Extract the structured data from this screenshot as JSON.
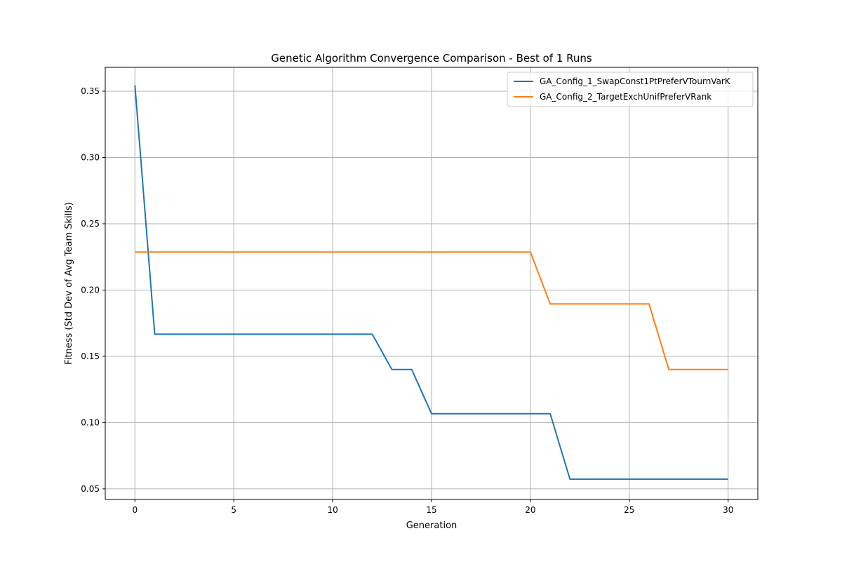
{
  "chart_data": {
    "type": "line",
    "title": "Genetic Algorithm Convergence Comparison - Best of 1 Runs",
    "xlabel": "Generation",
    "ylabel": "Fitness (Std Dev of Avg Team Skills)",
    "xlim": [
      -1.5,
      31.5
    ],
    "ylim": [
      0.042,
      0.368
    ],
    "xticks": [
      0,
      5,
      10,
      15,
      20,
      25,
      30
    ],
    "xtick_labels": [
      "0",
      "5",
      "10",
      "15",
      "20",
      "25",
      "30"
    ],
    "yticks": [
      0.05,
      0.1,
      0.15,
      0.2,
      0.25,
      0.3,
      0.35
    ],
    "ytick_labels": [
      "0.05",
      "0.10",
      "0.15",
      "0.20",
      "0.25",
      "0.30",
      "0.35"
    ],
    "grid": true,
    "legend_position": "top-right",
    "series": [
      {
        "name": "GA_Config_1_SwapConst1PtPreferVTournVarK",
        "color": "#1f77b4",
        "x": [
          0,
          1,
          2,
          3,
          4,
          5,
          6,
          7,
          8,
          9,
          10,
          11,
          12,
          13,
          14,
          15,
          16,
          17,
          18,
          19,
          20,
          21,
          22,
          23,
          24,
          25,
          26,
          27,
          28,
          29,
          30
        ],
        "y": [
          0.3545,
          0.1667,
          0.1667,
          0.1667,
          0.1667,
          0.1667,
          0.1667,
          0.1667,
          0.1667,
          0.1667,
          0.1667,
          0.1667,
          0.1667,
          0.14,
          0.14,
          0.1067,
          0.1067,
          0.1067,
          0.1067,
          0.1067,
          0.1067,
          0.1067,
          0.0573,
          0.0573,
          0.0573,
          0.0573,
          0.0573,
          0.0573,
          0.0573,
          0.0573,
          0.0573
        ]
      },
      {
        "name": "GA_Config_2_TargetExchUnifPreferVRank",
        "color": "#ff7f0e",
        "x": [
          0,
          1,
          2,
          3,
          4,
          5,
          6,
          7,
          8,
          9,
          10,
          11,
          12,
          13,
          14,
          15,
          16,
          17,
          18,
          19,
          20,
          21,
          22,
          23,
          24,
          25,
          26,
          27,
          28,
          29,
          30
        ],
        "y": [
          0.2287,
          0.2287,
          0.2287,
          0.2287,
          0.2287,
          0.2287,
          0.2287,
          0.2287,
          0.2287,
          0.2287,
          0.2287,
          0.2287,
          0.2287,
          0.2287,
          0.2287,
          0.2287,
          0.2287,
          0.2287,
          0.2287,
          0.2287,
          0.2287,
          0.1895,
          0.1895,
          0.1895,
          0.1895,
          0.1895,
          0.1895,
          0.14,
          0.14,
          0.14,
          0.14
        ]
      }
    ]
  }
}
